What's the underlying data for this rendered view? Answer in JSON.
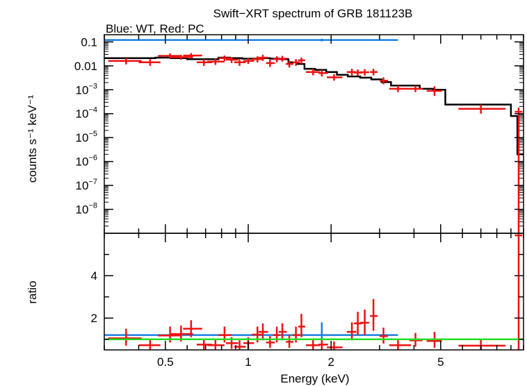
{
  "chart_data": [
    {
      "type": "scatter",
      "title": "Swift−XRT spectrum of GRB 181123B",
      "subtitle": "Blue: WT, Red: PC",
      "ylabel": "counts s⁻¹ keV⁻¹",
      "yscale": "log",
      "xscale": "log",
      "xlim": [
        0.3,
        10
      ],
      "ylim": [
        1e-09,
        0.2
      ],
      "ytick_labels": [
        {
          "mant": "0.1",
          "exp": ""
        },
        {
          "mant": "0.01",
          "exp": ""
        },
        {
          "mant": "10",
          "exp": "−3"
        },
        {
          "mant": "10",
          "exp": "−4"
        },
        {
          "mant": "10",
          "exp": "−5"
        },
        {
          "mant": "10",
          "exp": "−6"
        },
        {
          "mant": "10",
          "exp": "−7"
        },
        {
          "mant": "10",
          "exp": "−8"
        }
      ],
      "ytick_values": [
        0.1,
        0.01,
        0.001,
        0.0001,
        1e-05,
        1e-06,
        1e-07,
        1e-08
      ],
      "series": [
        {
          "name": "WT",
          "color": "#1a7fe0",
          "style": "errorbar",
          "points": [
            {
              "x": 1.85,
              "xlo": 0.3,
              "xhi": 3.5,
              "y": 0.12,
              "ylo": 0.105,
              "yhi": 0.137
            }
          ]
        },
        {
          "name": "PC",
          "color": "#ee1111",
          "style": "errorbar",
          "points": [
            {
              "x": 0.36,
              "xlo": 0.31,
              "xhi": 0.41,
              "y": 0.016,
              "ylo": 0.0115,
              "yhi": 0.021
            },
            {
              "x": 0.44,
              "xlo": 0.4,
              "xhi": 0.48,
              "y": 0.014,
              "ylo": 0.01,
              "yhi": 0.019
            },
            {
              "x": 0.52,
              "xlo": 0.47,
              "xhi": 0.57,
              "y": 0.026,
              "ylo": 0.02,
              "yhi": 0.033
            },
            {
              "x": 0.57,
              "xlo": 0.52,
              "xhi": 0.63,
              "y": 0.023,
              "ylo": 0.018,
              "yhi": 0.029
            },
            {
              "x": 0.62,
              "xlo": 0.58,
              "xhi": 0.68,
              "y": 0.027,
              "ylo": 0.021,
              "yhi": 0.034
            },
            {
              "x": 0.69,
              "xlo": 0.65,
              "xhi": 0.74,
              "y": 0.014,
              "ylo": 0.01,
              "yhi": 0.019
            },
            {
              "x": 0.76,
              "xlo": 0.71,
              "xhi": 0.82,
              "y": 0.015,
              "ylo": 0.011,
              "yhi": 0.02
            },
            {
              "x": 0.82,
              "xlo": 0.78,
              "xhi": 0.87,
              "y": 0.021,
              "ylo": 0.016,
              "yhi": 0.027
            },
            {
              "x": 0.87,
              "xlo": 0.83,
              "xhi": 0.92,
              "y": 0.018,
              "ylo": 0.013,
              "yhi": 0.023
            },
            {
              "x": 0.93,
              "xlo": 0.89,
              "xhi": 0.98,
              "y": 0.014,
              "ylo": 0.01,
              "yhi": 0.019
            },
            {
              "x": 1.0,
              "xlo": 0.96,
              "xhi": 1.05,
              "y": 0.016,
              "ylo": 0.012,
              "yhi": 0.021
            },
            {
              "x": 1.08,
              "xlo": 1.03,
              "xhi": 1.13,
              "y": 0.019,
              "ylo": 0.014,
              "yhi": 0.025
            },
            {
              "x": 1.13,
              "xlo": 1.09,
              "xhi": 1.18,
              "y": 0.022,
              "ylo": 0.016,
              "yhi": 0.029
            },
            {
              "x": 1.2,
              "xlo": 1.16,
              "xhi": 1.25,
              "y": 0.013,
              "ylo": 0.009,
              "yhi": 0.018
            },
            {
              "x": 1.27,
              "xlo": 1.23,
              "xhi": 1.31,
              "y": 0.019,
              "ylo": 0.014,
              "yhi": 0.025
            },
            {
              "x": 1.33,
              "xlo": 1.29,
              "xhi": 1.38,
              "y": 0.02,
              "ylo": 0.015,
              "yhi": 0.026
            },
            {
              "x": 1.41,
              "xlo": 1.37,
              "xhi": 1.46,
              "y": 0.012,
              "ylo": 0.0085,
              "yhi": 0.016
            },
            {
              "x": 1.49,
              "xlo": 1.45,
              "xhi": 1.54,
              "y": 0.014,
              "ylo": 0.01,
              "yhi": 0.019
            },
            {
              "x": 1.56,
              "xlo": 1.52,
              "xhi": 1.61,
              "y": 0.017,
              "ylo": 0.012,
              "yhi": 0.022
            },
            {
              "x": 1.72,
              "xlo": 1.62,
              "xhi": 1.82,
              "y": 0.0055,
              "ylo": 0.004,
              "yhi": 0.0075
            },
            {
              "x": 1.85,
              "xlo": 1.8,
              "xhi": 1.95,
              "y": 0.005,
              "ylo": 0.0036,
              "yhi": 0.0068
            },
            {
              "x": 2.05,
              "xlo": 1.93,
              "xhi": 2.2,
              "y": 0.0033,
              "ylo": 0.0024,
              "yhi": 0.0045
            },
            {
              "x": 2.38,
              "xlo": 2.28,
              "xhi": 2.47,
              "y": 0.0055,
              "ylo": 0.004,
              "yhi": 0.0075
            },
            {
              "x": 2.5,
              "xlo": 2.42,
              "xhi": 2.6,
              "y": 0.0052,
              "ylo": 0.0038,
              "yhi": 0.007
            },
            {
              "x": 2.65,
              "xlo": 2.55,
              "xhi": 2.75,
              "y": 0.0054,
              "ylo": 0.0039,
              "yhi": 0.0073
            },
            {
              "x": 2.85,
              "xlo": 2.77,
              "xhi": 2.95,
              "y": 0.0055,
              "ylo": 0.004,
              "yhi": 0.0075
            },
            {
              "x": 3.1,
              "xlo": 3.0,
              "xhi": 3.22,
              "y": 0.0024,
              "ylo": 0.0017,
              "yhi": 0.0033
            },
            {
              "x": 3.5,
              "xlo": 3.25,
              "xhi": 3.9,
              "y": 0.0011,
              "ylo": 0.0008,
              "yhi": 0.0015
            },
            {
              "x": 4.05,
              "xlo": 3.85,
              "xhi": 4.3,
              "y": 0.0011,
              "ylo": 0.0008,
              "yhi": 0.0015
            },
            {
              "x": 4.75,
              "xlo": 4.45,
              "xhi": 5.05,
              "y": 0.0009,
              "ylo": 0.00055,
              "yhi": 0.0014
            },
            {
              "x": 7.0,
              "xlo": 5.8,
              "xhi": 8.6,
              "y": 0.00016,
              "ylo": 0.0001,
              "yhi": 0.00024
            },
            {
              "x": 9.6,
              "xlo": 9.3,
              "xhi": 9.9,
              "y": 0.00012,
              "ylo": 1e-09,
              "yhi": 0.00018
            }
          ]
        },
        {
          "name": "model",
          "color": "#000000",
          "style": "step",
          "edges": [
            0.3,
            0.4,
            0.46,
            0.52,
            0.6,
            0.68,
            0.78,
            0.86,
            0.95,
            1.05,
            1.12,
            1.2,
            1.3,
            1.4,
            1.5,
            1.6,
            1.75,
            1.92,
            2.1,
            2.3,
            2.55,
            2.8,
            3.05,
            3.3,
            3.8,
            4.2,
            4.7,
            5.2,
            9.0,
            9.5,
            10.0
          ],
          "values": [
            0.021,
            0.021,
            0.022,
            0.021,
            0.019,
            0.019,
            0.022,
            0.021,
            0.02,
            0.02,
            0.021,
            0.02,
            0.019,
            0.014,
            0.012,
            0.0075,
            0.0068,
            0.0055,
            0.0042,
            0.0036,
            0.0032,
            0.0027,
            0.0021,
            0.0015,
            0.0015,
            0.0011,
            0.001,
            0.00024,
            8e-05,
            2e-06
          ]
        }
      ]
    },
    {
      "type": "scatter",
      "xlabel": "Energy (keV)",
      "ylabel": "ratio",
      "xscale": "log",
      "xlim": [
        0.3,
        10
      ],
      "ylim": [
        0.5,
        6
      ],
      "xtick_labels": [
        "0.5",
        "1",
        "2",
        "5"
      ],
      "xtick_values": [
        0.5,
        1,
        2,
        5
      ],
      "ytick_labels": [
        "2",
        "4"
      ],
      "ytick_values": [
        2,
        4
      ],
      "reference_line": {
        "y": 1,
        "color": "#22dd22"
      },
      "series": [
        {
          "name": "WT",
          "color": "#1a7fe0",
          "style": "errorbar",
          "points": [
            {
              "x": 1.85,
              "xlo": 0.3,
              "xhi": 3.5,
              "y": 1.2,
              "ylo": 1.0,
              "yhi": 1.8
            }
          ]
        },
        {
          "name": "PC",
          "color": "#ee1111",
          "style": "errorbar",
          "points": [
            {
              "x": 0.36,
              "xlo": 0.31,
              "xhi": 0.41,
              "y": 1.05,
              "ylo": 0.7,
              "yhi": 1.5
            },
            {
              "x": 0.44,
              "xlo": 0.4,
              "xhi": 0.48,
              "y": 0.72,
              "ylo": 0.5,
              "yhi": 1.0
            },
            {
              "x": 0.52,
              "xlo": 0.47,
              "xhi": 0.57,
              "y": 1.18,
              "ylo": 0.85,
              "yhi": 1.6
            },
            {
              "x": 0.57,
              "xlo": 0.52,
              "xhi": 0.63,
              "y": 1.25,
              "ylo": 0.9,
              "yhi": 1.65
            },
            {
              "x": 0.62,
              "xlo": 0.58,
              "xhi": 0.68,
              "y": 1.5,
              "ylo": 1.1,
              "yhi": 1.9
            },
            {
              "x": 0.69,
              "xlo": 0.65,
              "xhi": 0.74,
              "y": 0.75,
              "ylo": 0.5,
              "yhi": 1.0
            },
            {
              "x": 0.76,
              "xlo": 0.71,
              "xhi": 0.82,
              "y": 0.72,
              "ylo": 0.5,
              "yhi": 1.0
            },
            {
              "x": 0.82,
              "xlo": 0.78,
              "xhi": 0.87,
              "y": 1.2,
              "ylo": 0.85,
              "yhi": 1.6
            },
            {
              "x": 0.87,
              "xlo": 0.83,
              "xhi": 0.92,
              "y": 0.82,
              "ylo": 0.55,
              "yhi": 1.1
            },
            {
              "x": 0.93,
              "xlo": 0.89,
              "xhi": 0.98,
              "y": 0.65,
              "ylo": 0.5,
              "yhi": 0.95
            },
            {
              "x": 1.0,
              "xlo": 0.96,
              "xhi": 1.05,
              "y": 0.82,
              "ylo": 0.55,
              "yhi": 1.1
            },
            {
              "x": 1.08,
              "xlo": 1.03,
              "xhi": 1.13,
              "y": 1.22,
              "ylo": 0.85,
              "yhi": 1.6
            },
            {
              "x": 1.13,
              "xlo": 1.09,
              "xhi": 1.18,
              "y": 1.35,
              "ylo": 0.95,
              "yhi": 1.75
            },
            {
              "x": 1.2,
              "xlo": 1.16,
              "xhi": 1.25,
              "y": 0.85,
              "ylo": 0.6,
              "yhi": 1.15
            },
            {
              "x": 1.27,
              "xlo": 1.23,
              "xhi": 1.31,
              "y": 1.2,
              "ylo": 0.85,
              "yhi": 1.6
            },
            {
              "x": 1.33,
              "xlo": 1.29,
              "xhi": 1.38,
              "y": 1.35,
              "ylo": 0.95,
              "yhi": 1.75
            },
            {
              "x": 1.41,
              "xlo": 1.37,
              "xhi": 1.46,
              "y": 0.88,
              "ylo": 0.6,
              "yhi": 1.2
            },
            {
              "x": 1.49,
              "xlo": 1.45,
              "xhi": 1.54,
              "y": 1.2,
              "ylo": 0.85,
              "yhi": 1.6
            },
            {
              "x": 1.56,
              "xlo": 1.52,
              "xhi": 1.61,
              "y": 1.6,
              "ylo": 1.1,
              "yhi": 2.2
            },
            {
              "x": 1.72,
              "xlo": 1.62,
              "xhi": 1.82,
              "y": 0.72,
              "ylo": 0.5,
              "yhi": 1.0
            },
            {
              "x": 1.85,
              "xlo": 1.8,
              "xhi": 1.95,
              "y": 0.75,
              "ylo": 0.5,
              "yhi": 1.05
            },
            {
              "x": 2.05,
              "xlo": 1.93,
              "xhi": 2.2,
              "y": 0.62,
              "ylo": 0.5,
              "yhi": 0.9
            },
            {
              "x": 2.38,
              "xlo": 2.28,
              "xhi": 2.47,
              "y": 1.35,
              "ylo": 0.95,
              "yhi": 1.8
            },
            {
              "x": 2.5,
              "xlo": 2.42,
              "xhi": 2.6,
              "y": 1.75,
              "ylo": 1.2,
              "yhi": 2.3
            },
            {
              "x": 2.65,
              "xlo": 2.55,
              "xhi": 2.75,
              "y": 1.78,
              "ylo": 1.2,
              "yhi": 2.4
            },
            {
              "x": 2.85,
              "xlo": 2.77,
              "xhi": 2.95,
              "y": 2.1,
              "ylo": 1.4,
              "yhi": 2.9
            },
            {
              "x": 3.1,
              "xlo": 3.0,
              "xhi": 3.22,
              "y": 1.15,
              "ylo": 0.8,
              "yhi": 1.55
            },
            {
              "x": 3.5,
              "xlo": 3.25,
              "xhi": 3.9,
              "y": 0.72,
              "ylo": 0.5,
              "yhi": 1.0
            },
            {
              "x": 4.05,
              "xlo": 3.85,
              "xhi": 4.3,
              "y": 0.95,
              "ylo": 0.65,
              "yhi": 1.3
            },
            {
              "x": 4.75,
              "xlo": 4.45,
              "xhi": 5.05,
              "y": 0.92,
              "ylo": 0.6,
              "yhi": 1.35
            },
            {
              "x": 7.0,
              "xlo": 5.8,
              "xhi": 8.6,
              "y": 0.7,
              "ylo": 0.5,
              "yhi": 1.0
            },
            {
              "x": 9.6,
              "xlo": 9.3,
              "xhi": 9.9,
              "y": 5.9,
              "ylo": 0.5,
              "yhi": 6.0
            }
          ]
        }
      ]
    }
  ]
}
